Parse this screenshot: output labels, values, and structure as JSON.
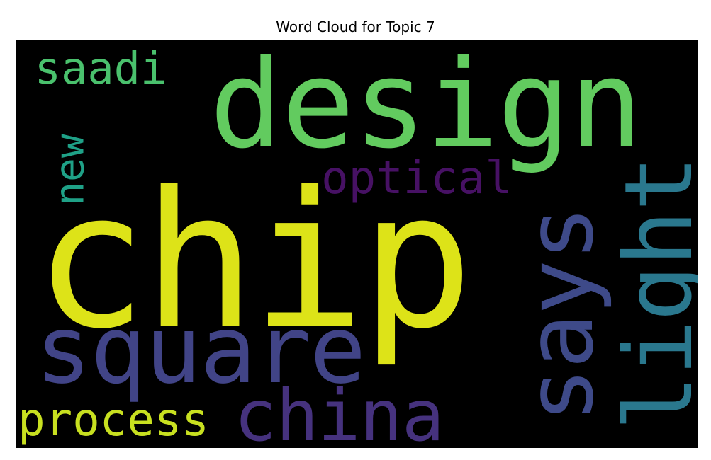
{
  "chart_data": {
    "type": "wordcloud",
    "title": "Word Cloud for Topic 7",
    "background": "#000000",
    "colormap": "viridis",
    "words": [
      {
        "text": "chip",
        "color": "#dde318"
      },
      {
        "text": "design",
        "color": "#62cb5f"
      },
      {
        "text": "square",
        "color": "#414487"
      },
      {
        "text": "says",
        "color": "#3e4a89"
      },
      {
        "text": "light",
        "color": "#2a788e"
      },
      {
        "text": "china",
        "color": "#46327e"
      },
      {
        "text": "optical",
        "color": "#471164"
      },
      {
        "text": "process",
        "color": "#c8e020"
      },
      {
        "text": "saadi",
        "color": "#4ac16d"
      },
      {
        "text": "new",
        "color": "#1fa187"
      }
    ]
  }
}
